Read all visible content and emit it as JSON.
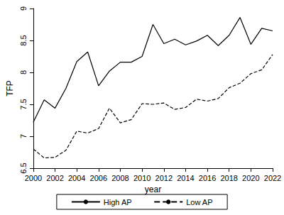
{
  "chart_data": {
    "type": "line",
    "x_label": "year",
    "y_label": "TFP",
    "x": [
      2000,
      2001,
      2002,
      2003,
      2004,
      2005,
      2006,
      2007,
      2008,
      2009,
      2010,
      2011,
      2012,
      2013,
      2014,
      2015,
      2016,
      2017,
      2018,
      2019,
      2020,
      2021,
      2022
    ],
    "series": [
      {
        "name": "High AP",
        "color": "#000000",
        "line_style": "solid",
        "values": [
          7.22,
          7.57,
          7.44,
          7.75,
          8.17,
          8.32,
          7.79,
          8.02,
          8.16,
          8.16,
          8.25,
          8.75,
          8.45,
          8.52,
          8.43,
          8.49,
          8.58,
          8.42,
          8.58,
          8.86,
          8.44,
          8.69,
          8.65
        ]
      },
      {
        "name": "Low AP",
        "color": "#000000",
        "line_style": "dashed",
        "values": [
          6.8,
          6.66,
          6.67,
          6.78,
          7.08,
          7.05,
          7.12,
          7.44,
          7.21,
          7.26,
          7.51,
          7.5,
          7.52,
          7.42,
          7.45,
          7.58,
          7.55,
          7.59,
          7.76,
          7.83,
          7.98,
          8.04,
          8.28
        ]
      }
    ],
    "xlim": [
      2000,
      2022
    ],
    "xticks": [
      2000,
      2002,
      2004,
      2006,
      2008,
      2010,
      2012,
      2014,
      2016,
      2018,
      2020,
      2022
    ],
    "ylim": [
      6.5,
      9
    ],
    "yticks": [
      6.5,
      7,
      7.5,
      8,
      8.5,
      9
    ],
    "grid": false,
    "legend": "bottom"
  }
}
